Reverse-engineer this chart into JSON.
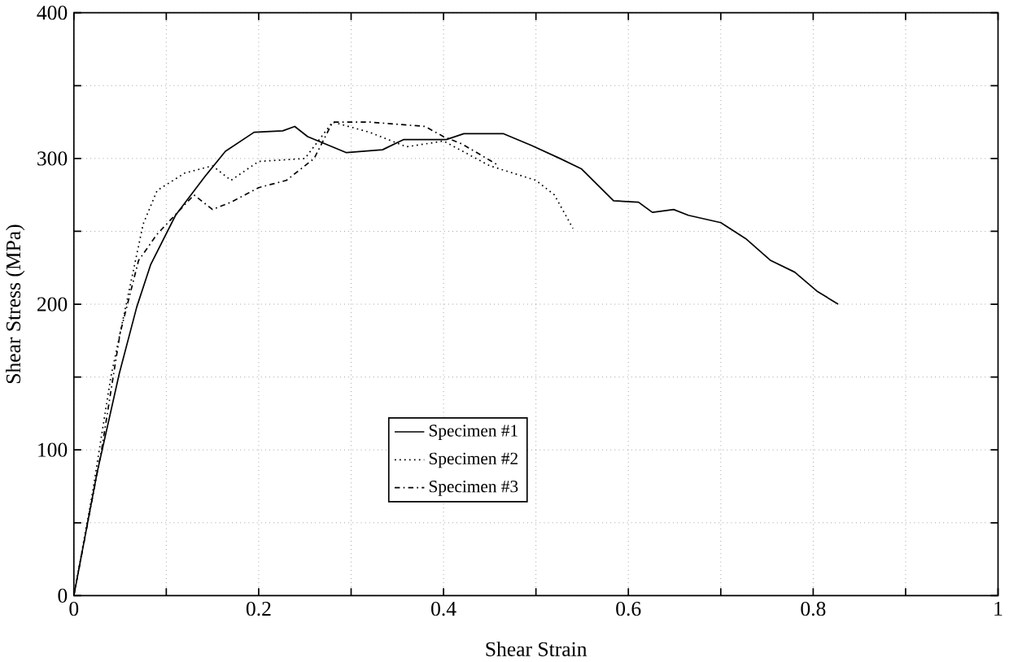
{
  "chart_data": {
    "type": "line",
    "xlabel": "Shear Strain",
    "ylabel": "Shear Stress (MPa)",
    "xlim": [
      0,
      1
    ],
    "ylim": [
      0,
      400
    ],
    "xticks": [
      0,
      {
        "value": 0.1,
        "label": null
      },
      0.2,
      {
        "value": 0.3,
        "label": null
      },
      0.4,
      {
        "value": 0.5,
        "label": null
      },
      0.6,
      {
        "value": 0.7,
        "label": null
      },
      0.8,
      {
        "value": 0.9,
        "label": null
      },
      1
    ],
    "yticks": [
      0,
      {
        "value": 50,
        "label": null
      },
      100,
      {
        "value": 150,
        "label": null
      },
      200,
      {
        "value": 250,
        "label": null
      },
      300,
      {
        "value": 350,
        "label": null
      },
      400
    ],
    "grid": true,
    "legend": "center",
    "marker": "none",
    "series": [
      {
        "name": "Specimen #1",
        "color": "#000000",
        "line_style": "solid",
        "x": [
          0,
          0.025,
          0.049,
          0.068,
          0.083,
          0.11,
          0.141,
          0.164,
          0.195,
          0.226,
          0.239,
          0.253,
          0.295,
          0.334,
          0.357,
          0.403,
          0.422,
          0.465,
          0.495,
          0.526,
          0.549,
          0.584,
          0.611,
          0.626,
          0.649,
          0.665,
          0.7,
          0.727,
          0.754,
          0.78,
          0.804,
          0.827
        ],
        "values": [
          0,
          84,
          152,
          198,
          227,
          261,
          287,
          305,
          318,
          319,
          322,
          315,
          304,
          306,
          313,
          313,
          317,
          317,
          309,
          300,
          293,
          271,
          270,
          263,
          265,
          261,
          256,
          245,
          230,
          222,
          209,
          200
        ]
      },
      {
        "name": "Specimen #2",
        "color": "#000000",
        "line_style": "dotted",
        "x": [
          0,
          0.02,
          0.04,
          0.06,
          0.075,
          0.09,
          0.12,
          0.15,
          0.17,
          0.2,
          0.25,
          0.28,
          0.32,
          0.36,
          0.4,
          0.45,
          0.5,
          0.52,
          0.54
        ],
        "values": [
          0,
          70,
          150,
          210,
          255,
          278,
          290,
          295,
          285,
          298,
          300,
          325,
          318,
          308,
          312,
          295,
          285,
          275,
          252
        ]
      },
      {
        "name": "Specimen #3",
        "color": "#000000",
        "line_style": "dashdot",
        "x": [
          0,
          0.03,
          0.05,
          0.07,
          0.09,
          0.13,
          0.15,
          0.17,
          0.2,
          0.23,
          0.26,
          0.28,
          0.32,
          0.38,
          0.4,
          0.42,
          0.46
        ],
        "values": [
          0,
          100,
          180,
          230,
          248,
          275,
          265,
          270,
          280,
          285,
          300,
          325,
          325,
          322,
          315,
          310,
          295
        ]
      }
    ]
  }
}
